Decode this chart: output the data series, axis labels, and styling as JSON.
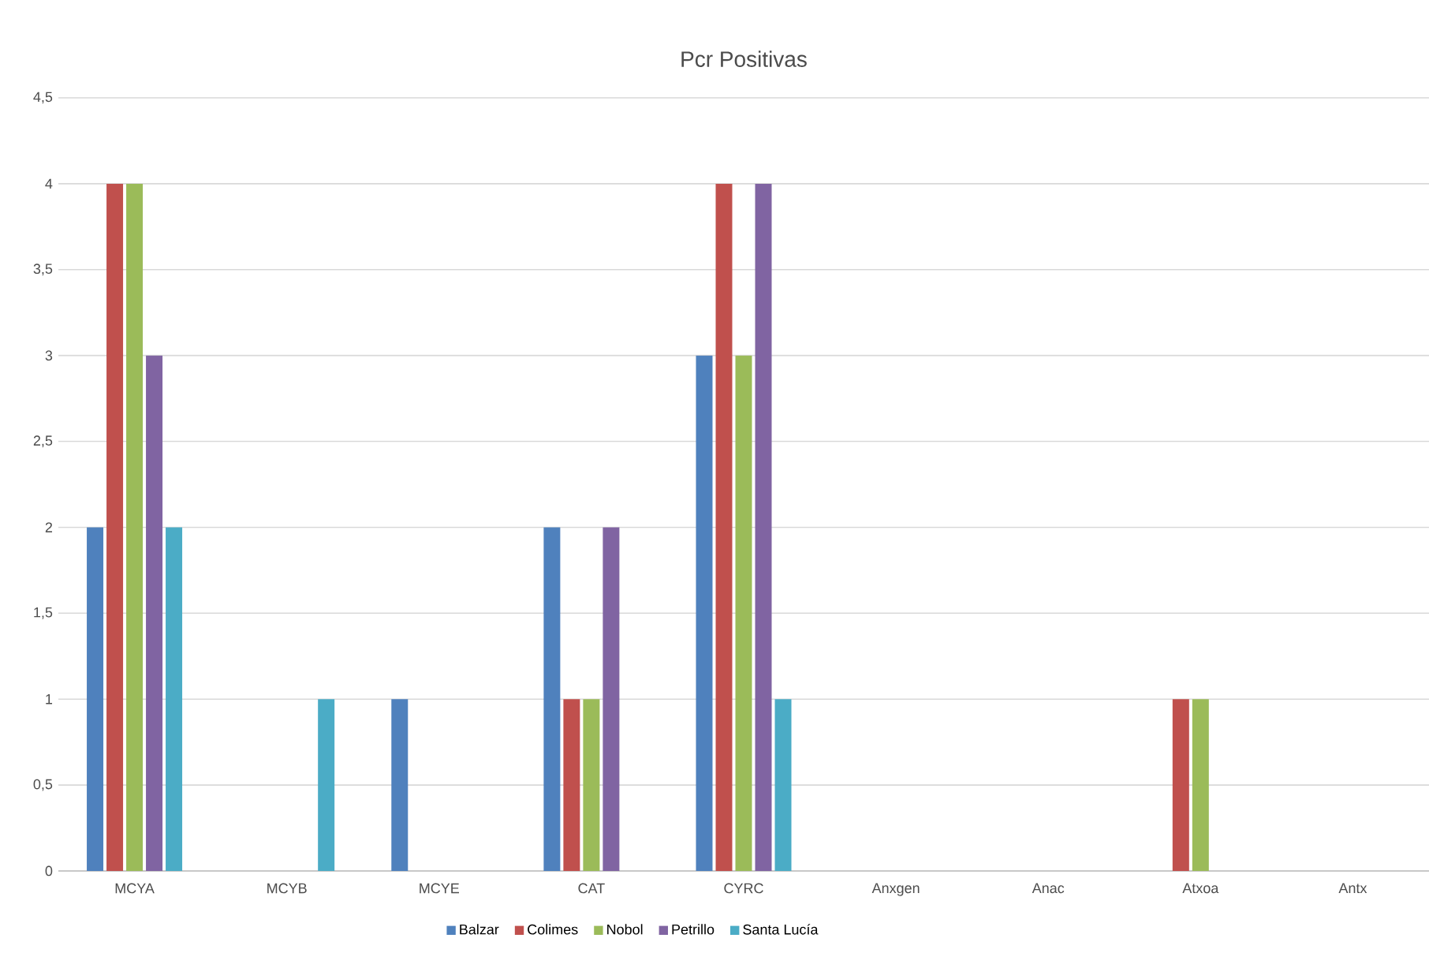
{
  "chart_data": {
    "type": "bar",
    "title": "Pcr Positivas",
    "categories": [
      "MCYA",
      "MCYB",
      "MCYE",
      "CAT",
      "CYRC",
      "Anxgen",
      "Anac",
      "Atxoa",
      "Antx"
    ],
    "series": [
      {
        "name": "Balzar",
        "color": "#4f81bd",
        "values": [
          2,
          0,
          1,
          2,
          3,
          0,
          0,
          0,
          0
        ]
      },
      {
        "name": "Colimes",
        "color": "#c0504d",
        "values": [
          4,
          0,
          0,
          1,
          4,
          0,
          0,
          1,
          0
        ]
      },
      {
        "name": "Nobol",
        "color": "#9bbb59",
        "values": [
          4,
          0,
          0,
          1,
          3,
          0,
          0,
          1,
          0
        ]
      },
      {
        "name": "Petrillo",
        "color": "#8064a2",
        "values": [
          3,
          0,
          0,
          2,
          4,
          0,
          0,
          0,
          0
        ]
      },
      {
        "name": "Santa Lucía",
        "color": "#4bacc6",
        "values": [
          2,
          1,
          0,
          0,
          1,
          0,
          0,
          0,
          0
        ]
      }
    ],
    "ylim": [
      0,
      4.5
    ],
    "yticks": [
      0,
      {
        "value": 0.5,
        "label": "0,5"
      },
      1,
      {
        "value": 1.5,
        "label": "1,5"
      },
      2,
      {
        "value": 2.5,
        "label": "2,5"
      },
      3,
      {
        "value": 3.5,
        "label": "3,5"
      },
      4,
      {
        "value": 4.5,
        "label": "4,5"
      }
    ],
    "grid": "y",
    "legend": "bottom"
  }
}
